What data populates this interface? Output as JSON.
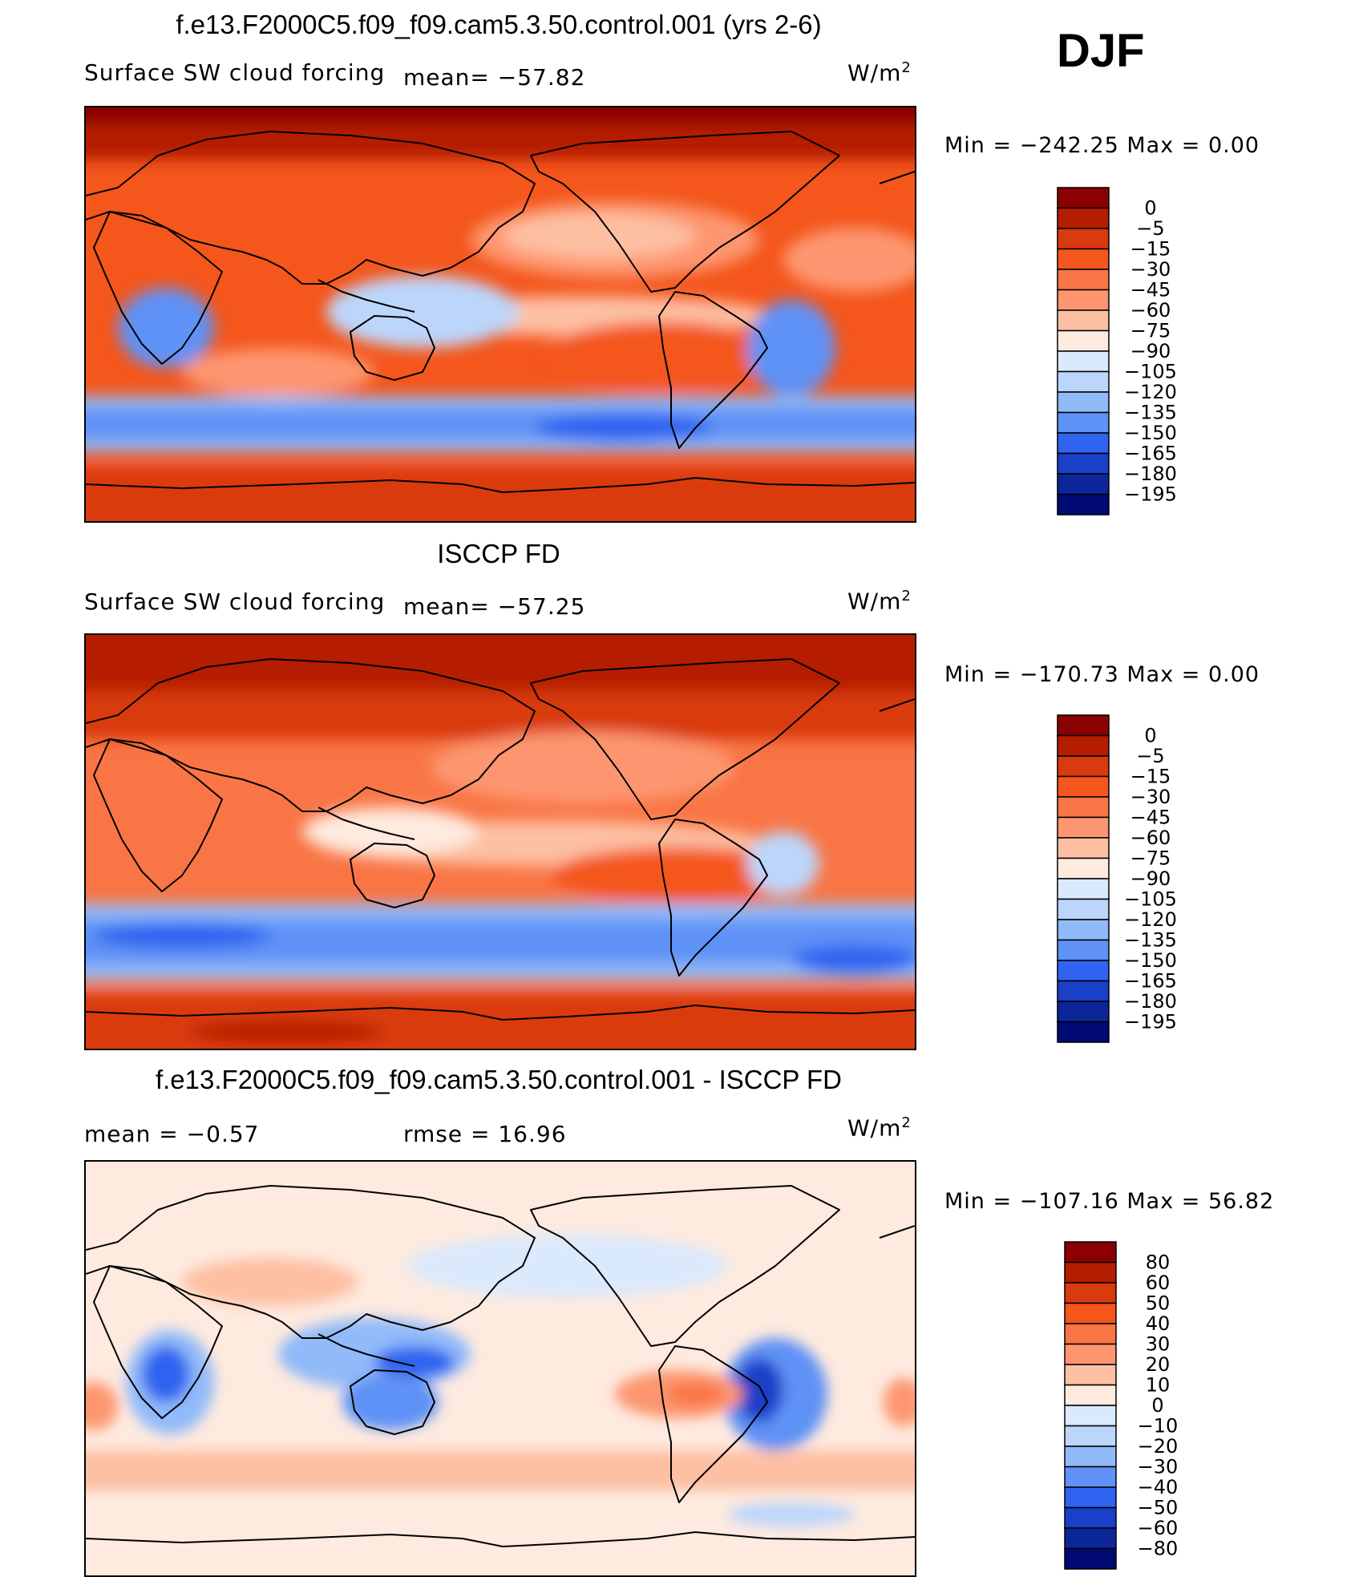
{
  "season": "DJF",
  "units_base": "W/m",
  "units_exp": "2",
  "chart_data": [
    {
      "type": "heatmap",
      "title": "f.e13.F2000C5.f09_f09.cam5.3.50.control.001 (yrs 2-6)",
      "subtitle": "Surface SW cloud forcing",
      "stat_text": "mean=  −57.82",
      "minmax_text": "Min  =  −242.25  Max  =      0.00",
      "color_levels": [
        "0",
        "−5",
        "−15",
        "−30",
        "−45",
        "−60",
        "−75",
        "−90",
        "−105",
        "−120",
        "−135",
        "−150",
        "−165",
        "−180",
        "−195"
      ],
      "colors": [
        "#8b0000",
        "#b51d00",
        "#d93a0e",
        "#f4561c",
        "#f97545",
        "#fd9670",
        "#fdc0a3",
        "#feeadf",
        "#dbe9fc",
        "#bcd6fb",
        "#91baf9",
        "#5f92f6",
        "#2f63f0",
        "#1a3fc8",
        "#0c2599",
        "#000a72"
      ]
    },
    {
      "type": "heatmap",
      "title": "ISCCP FD",
      "subtitle": "Surface SW cloud forcing",
      "stat_text": "mean=  −57.25",
      "minmax_text": "Min  =  −170.73  Max  =      0.00",
      "color_levels": [
        "0",
        "−5",
        "−15",
        "−30",
        "−45",
        "−60",
        "−75",
        "−90",
        "−105",
        "−120",
        "−135",
        "−150",
        "−165",
        "−180",
        "−195"
      ],
      "colors": [
        "#8b0000",
        "#b51d00",
        "#d93a0e",
        "#f4561c",
        "#f97545",
        "#fd9670",
        "#fdc0a3",
        "#feeadf",
        "#dbe9fc",
        "#bcd6fb",
        "#91baf9",
        "#5f92f6",
        "#2f63f0",
        "#1a3fc8",
        "#0c2599",
        "#000a72"
      ]
    },
    {
      "type": "heatmap",
      "title": "f.e13.F2000C5.f09_f09.cam5.3.50.control.001 - ISCCP FD",
      "mean_text": "mean  =     −0.57",
      "rmse_text": "rmse  =     16.96",
      "minmax_text": "Min  =  −107.16  Max  =    56.82",
      "color_levels": [
        "80",
        "60",
        "50",
        "40",
        "30",
        "20",
        "10",
        "0",
        "−10",
        "−20",
        "−30",
        "−40",
        "−50",
        "−60",
        "−80"
      ],
      "colors": [
        "#8b0000",
        "#b51d00",
        "#d93a0e",
        "#f4561c",
        "#f97545",
        "#fd9670",
        "#fdc0a3",
        "#feeadf",
        "#dbe9fc",
        "#bcd6fb",
        "#91baf9",
        "#5f92f6",
        "#2f63f0",
        "#1a3fc8",
        "#0c2599",
        "#000a72"
      ]
    }
  ]
}
